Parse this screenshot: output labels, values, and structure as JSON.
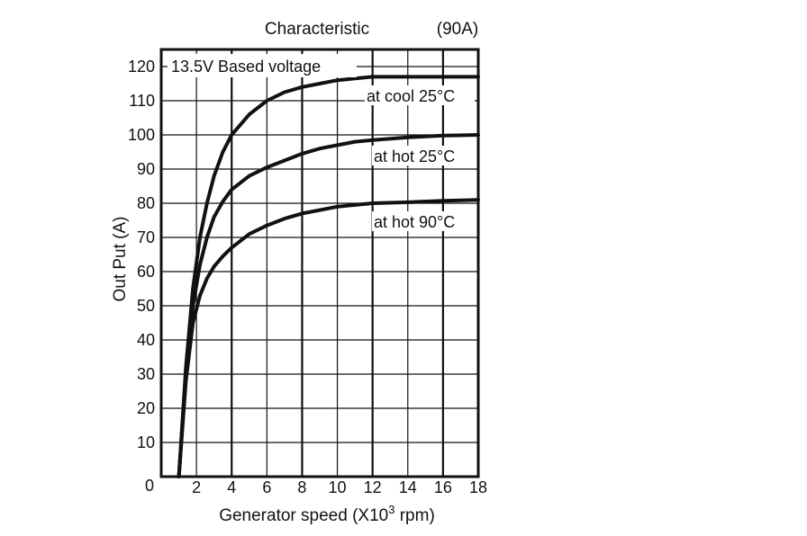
{
  "chart_data": {
    "type": "line",
    "title": "Characteristic",
    "subtitle": "(90A)",
    "annotation": "13.5V Based voltage",
    "xlabel": "Generator speed (X10",
    "xlabel_sup": "3",
    "xlabel_suffix": " rpm)",
    "ylabel": "Out Put (A)",
    "xlim": [
      0,
      18
    ],
    "ylim": [
      0,
      125
    ],
    "x_ticks": [
      2,
      4,
      6,
      8,
      10,
      12,
      14,
      16,
      18
    ],
    "x_tick_labels": [
      "2",
      "4",
      "6",
      "8",
      "10",
      "12",
      "14",
      "16",
      "18"
    ],
    "y_ticks": [
      10,
      20,
      30,
      40,
      50,
      60,
      70,
      80,
      90,
      100,
      110,
      120
    ],
    "y_tick_labels": [
      "10",
      "20",
      "30",
      "40",
      "50",
      "60",
      "70",
      "80",
      "90",
      "100",
      "110",
      "120"
    ],
    "origin_label": "0",
    "grid": true,
    "series": [
      {
        "name": "at cool 25°C",
        "x": [
          1.0,
          1.4,
          1.8,
          2.2,
          2.6,
          3.0,
          3.5,
          4.0,
          5.0,
          6.0,
          7.0,
          8.0,
          9.0,
          10.0,
          11.0,
          12.0,
          14.0,
          16.0,
          18.0
        ],
        "values": [
          0,
          32,
          55,
          70,
          80,
          88,
          95,
          100,
          106,
          110,
          112.5,
          114,
          115,
          116,
          116.5,
          117,
          117,
          117,
          117
        ]
      },
      {
        "name": "at hot 25°C",
        "x": [
          1.0,
          1.4,
          1.8,
          2.2,
          2.6,
          3.0,
          3.5,
          4.0,
          5.0,
          6.0,
          7.0,
          8.0,
          9.0,
          10.0,
          11.0,
          12.0,
          14.0,
          16.0,
          18.0
        ],
        "values": [
          0,
          30,
          50,
          62,
          70,
          76,
          80.5,
          84,
          88,
          90.5,
          92.5,
          94.5,
          96,
          97,
          98,
          98.5,
          99.3,
          99.8,
          100
        ]
      },
      {
        "name": "at hot 90°C",
        "x": [
          1.0,
          1.4,
          1.8,
          2.2,
          2.6,
          3.0,
          3.5,
          4.0,
          5.0,
          6.0,
          7.0,
          8.0,
          9.0,
          10.0,
          11.0,
          12.0,
          14.0,
          16.0,
          18.0
        ],
        "values": [
          0,
          28,
          45,
          53,
          58,
          61.5,
          64.5,
          67,
          71,
          73.5,
          75.5,
          77,
          78,
          79,
          79.5,
          80,
          80.3,
          80.7,
          81
        ]
      }
    ]
  }
}
